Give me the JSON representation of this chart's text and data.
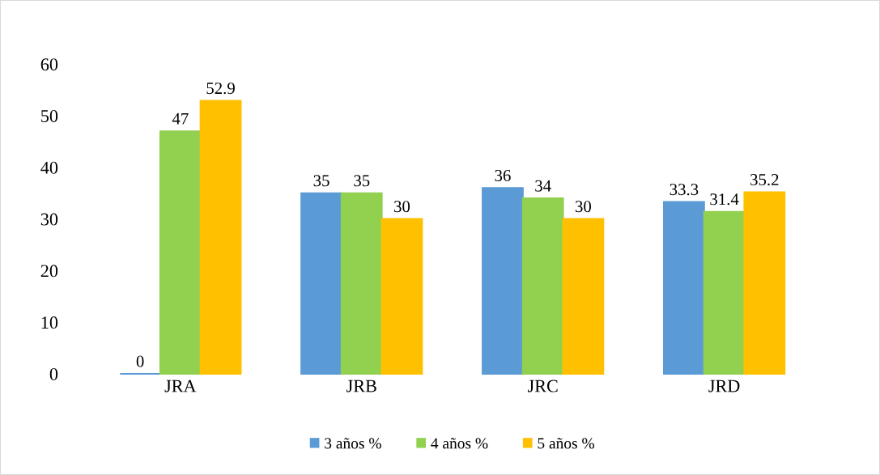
{
  "chart_data": {
    "type": "bar",
    "categories": [
      "JRA",
      "JRB",
      "JRC",
      "JRD"
    ],
    "series": [
      {
        "name": "3 años %",
        "color": "#5b9bd5",
        "values": [
          0,
          35,
          36,
          33.3
        ]
      },
      {
        "name": "4 años %",
        "color": "#92d050",
        "values": [
          47,
          35,
          34,
          31.4
        ]
      },
      {
        "name": "5 años %",
        "color": "#ffc000",
        "values": [
          52.9,
          30,
          30,
          35.2
        ]
      }
    ],
    "ylim": [
      0,
      60
    ],
    "yticks": [
      0,
      10,
      20,
      30,
      40,
      50,
      60
    ],
    "legend": "bottom",
    "data_labels": true
  }
}
